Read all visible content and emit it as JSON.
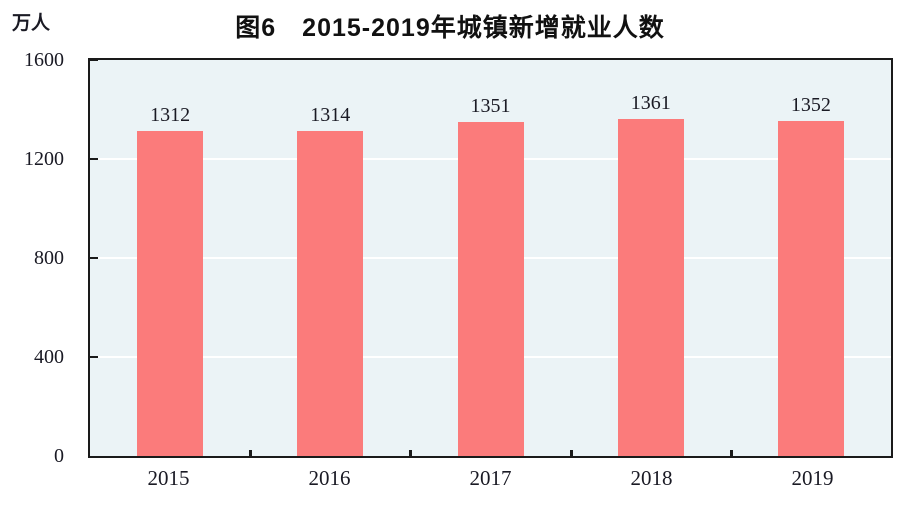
{
  "title": "图6　2015-2019年城镇新增就业人数",
  "unit_label": "万人",
  "colors": {
    "bar": "#FB7B7B",
    "plot_background": "#EBF3F6",
    "gridline": "#FFFFFF",
    "axis": "#1A1A1A",
    "text": "#1A1A24"
  },
  "chart_data": {
    "type": "bar",
    "title": "图6　2015-2019年城镇新增就业人数",
    "categories": [
      "2015",
      "2016",
      "2017",
      "2018",
      "2019"
    ],
    "values": [
      1312,
      1314,
      1351,
      1361,
      1352
    ],
    "xlabel": "",
    "ylabel": "万人",
    "ylim": [
      0,
      1600
    ],
    "yticks": [
      0,
      400,
      800,
      1200,
      1600
    ],
    "grid": true,
    "gridlines_at": [
      400,
      800,
      1200
    ],
    "legend_position": "none",
    "bar_labels_visible": true
  }
}
